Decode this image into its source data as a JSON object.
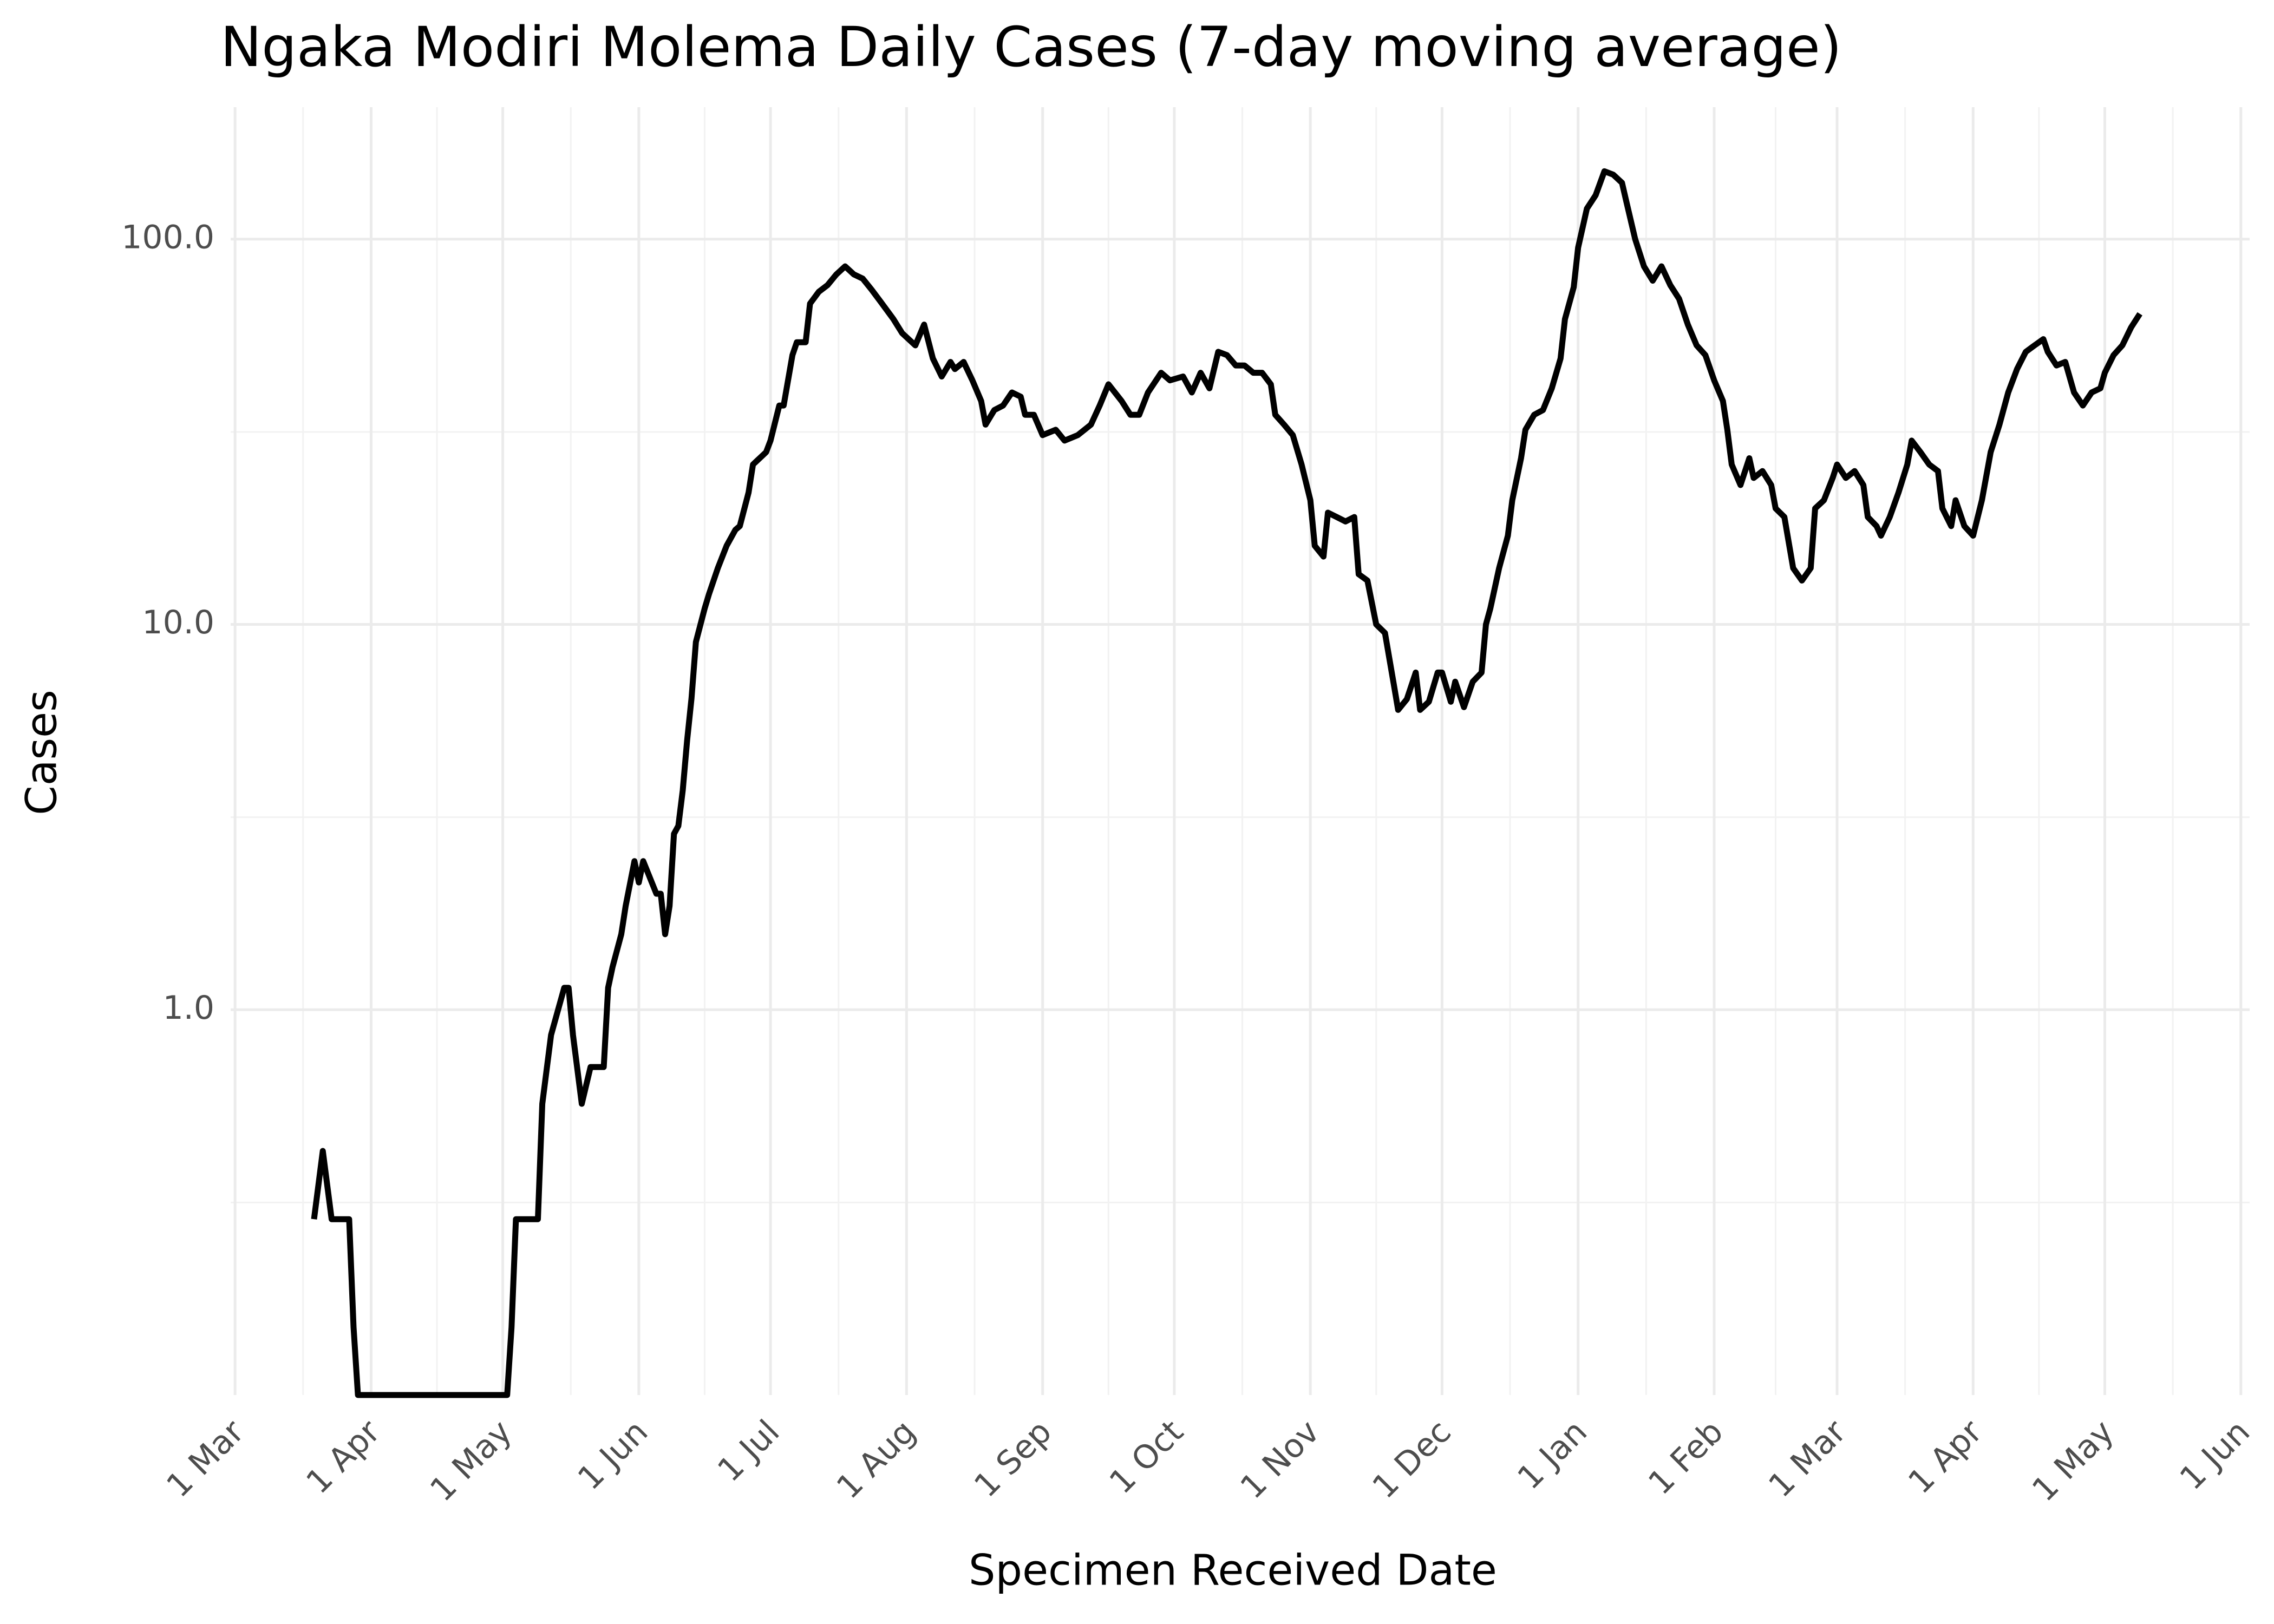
{
  "chart_data": {
    "type": "line",
    "title": "Ngaka Modiri Molema Daily Cases (7-day moving average)",
    "x_label": "Specimen Received Date",
    "y_label": "Cases",
    "color": "#000000",
    "log_y": true,
    "grid": true,
    "xlim": [
      -1,
      459
    ],
    "ylim": [
      0.1,
      220
    ],
    "xticks": [
      {
        "value": 0,
        "label": "1 Mar"
      },
      {
        "value": 31,
        "label": "1 Apr"
      },
      {
        "value": 61,
        "label": "1 May"
      },
      {
        "value": 92,
        "label": "1 Jun"
      },
      {
        "value": 122,
        "label": "1 Jul"
      },
      {
        "value": 153,
        "label": "1 Aug"
      },
      {
        "value": 184,
        "label": "1 Sep"
      },
      {
        "value": 214,
        "label": "1 Oct"
      },
      {
        "value": 245,
        "label": "1 Nov"
      },
      {
        "value": 275,
        "label": "1 Dec"
      },
      {
        "value": 306,
        "label": "1 Jan"
      },
      {
        "value": 337,
        "label": "1 Feb"
      },
      {
        "value": 365,
        "label": "1 Mar"
      },
      {
        "value": 396,
        "label": "1 Apr"
      },
      {
        "value": 426,
        "label": "1 May"
      },
      {
        "value": 457,
        "label": "1 Jun"
      }
    ],
    "xminor": [
      15.5,
      46,
      76.5,
      107,
      137.5,
      168.5,
      199,
      229.5,
      260,
      290.5,
      321.5,
      351,
      380.5,
      411,
      441.5
    ],
    "yticks": [
      {
        "value": 1,
        "label": "1.0"
      },
      {
        "value": 10,
        "label": "10.0"
      },
      {
        "value": 100,
        "label": "100.0"
      }
    ],
    "yminor": [
      0.316,
      3.16,
      31.6
    ],
    "x": [
      18,
      20,
      22,
      26,
      27,
      28,
      62,
      63,
      64,
      69,
      70,
      72,
      75,
      76,
      77,
      79,
      81,
      84,
      85,
      86,
      88,
      89,
      91,
      92,
      93,
      96,
      97,
      98,
      99,
      100,
      101,
      102,
      103,
      104,
      105,
      107,
      108,
      110,
      112,
      114,
      115,
      117,
      118,
      121,
      122,
      124,
      125,
      127,
      128,
      130,
      131,
      133,
      135,
      137,
      139,
      141,
      143,
      145,
      147,
      150,
      152,
      155,
      157,
      159,
      161,
      163,
      164,
      166,
      168,
      170,
      171,
      173,
      175,
      177,
      179,
      180,
      182,
      184,
      187,
      189,
      192,
      195,
      197,
      199,
      202,
      204,
      206,
      208,
      211,
      213,
      216,
      218,
      220,
      222,
      224,
      226,
      228,
      230,
      232,
      234,
      236,
      237,
      239,
      241,
      243,
      245,
      246,
      248,
      249,
      251,
      253,
      255,
      256,
      258,
      260,
      262,
      264,
      265,
      267,
      269,
      270,
      272,
      274,
      275,
      277,
      278,
      280,
      282,
      284,
      285,
      286,
      288,
      290,
      291,
      293,
      294,
      296,
      298,
      300,
      302,
      303,
      305,
      306,
      308,
      310,
      312,
      314,
      316,
      317,
      319,
      321,
      323,
      325,
      327,
      329,
      331,
      333,
      335,
      337,
      339,
      340,
      341,
      343,
      345,
      346,
      348,
      350,
      351,
      353,
      355,
      357,
      359,
      360,
      362,
      364,
      365,
      367,
      369,
      371,
      372,
      374,
      375,
      377,
      379,
      381,
      382,
      384,
      386,
      388,
      389,
      391,
      392,
      394,
      396,
      398,
      400,
      402,
      404,
      406,
      408,
      410,
      412,
      413,
      415,
      417,
      419,
      421,
      423,
      425,
      426,
      428,
      430,
      432,
      434
    ],
    "values": [
      0.286,
      0.43,
      0.286,
      0.286,
      0.15,
      0.1,
      0.1,
      0.15,
      0.286,
      0.286,
      0.57,
      0.86,
      1.14,
      1.14,
      0.86,
      0.57,
      0.71,
      0.71,
      1.14,
      1.29,
      1.57,
      1.86,
      2.43,
      2.14,
      2.43,
      2.0,
      2.0,
      1.57,
      1.86,
      2.86,
      3.0,
      3.71,
      5.0,
      6.43,
      9.0,
      11.0,
      12.0,
      14.0,
      16.0,
      17.6,
      18.0,
      22.0,
      26.0,
      28.0,
      30.0,
      37.0,
      37.0,
      50.0,
      54.0,
      54.0,
      68.0,
      73.0,
      76.0,
      81.0,
      85.0,
      81.0,
      79.0,
      74.0,
      69.0,
      62.0,
      57.0,
      53.0,
      60.0,
      49.0,
      44.0,
      48.0,
      46.0,
      48.0,
      43.0,
      38.0,
      33.0,
      36.0,
      37.0,
      40.0,
      39.0,
      35.0,
      35.0,
      31.0,
      32.0,
      30.0,
      31.0,
      33.0,
      37.0,
      42.0,
      38.0,
      35.0,
      35.0,
      40.0,
      45.0,
      43.0,
      44.0,
      40.0,
      45.0,
      41.0,
      51.0,
      50.0,
      47.0,
      47.0,
      45.0,
      45.0,
      42.0,
      35.0,
      33.0,
      31.0,
      26.0,
      21.0,
      16.0,
      15.0,
      19.5,
      19.0,
      18.5,
      19.0,
      13.5,
      13.0,
      10.0,
      9.5,
      7.0,
      6.0,
      6.4,
      7.5,
      6.0,
      6.3,
      7.5,
      7.5,
      6.3,
      7.1,
      6.1,
      7.1,
      7.5,
      10.0,
      11.0,
      14.0,
      17.0,
      21.0,
      27.0,
      32.0,
      35.0,
      36.0,
      41.0,
      49.0,
      62.0,
      75.0,
      95.0,
      120.0,
      130.0,
      150.0,
      147.0,
      140.0,
      125.0,
      100.0,
      85.0,
      78.0,
      85.0,
      76.0,
      70.0,
      60.0,
      53.0,
      50.0,
      43.0,
      38.0,
      32.0,
      26.0,
      23.0,
      27.0,
      24.0,
      25.0,
      23.0,
      20.0,
      19.0,
      14.0,
      13.0,
      14.0,
      20.0,
      21.0,
      24.0,
      26.0,
      24.0,
      25.0,
      23.0,
      19.0,
      18.0,
      17.0,
      19.0,
      22.0,
      26.0,
      30.0,
      28.0,
      26.0,
      25.0,
      20.0,
      18.0,
      21.0,
      18.0,
      17.0,
      21.0,
      28.0,
      33.0,
      40.0,
      46.0,
      51.0,
      53.0,
      55.0,
      51.0,
      47.0,
      48.0,
      40.0,
      37.0,
      40.0,
      41.0,
      45.0,
      50.0,
      53.0,
      59.0,
      64.0
    ]
  }
}
